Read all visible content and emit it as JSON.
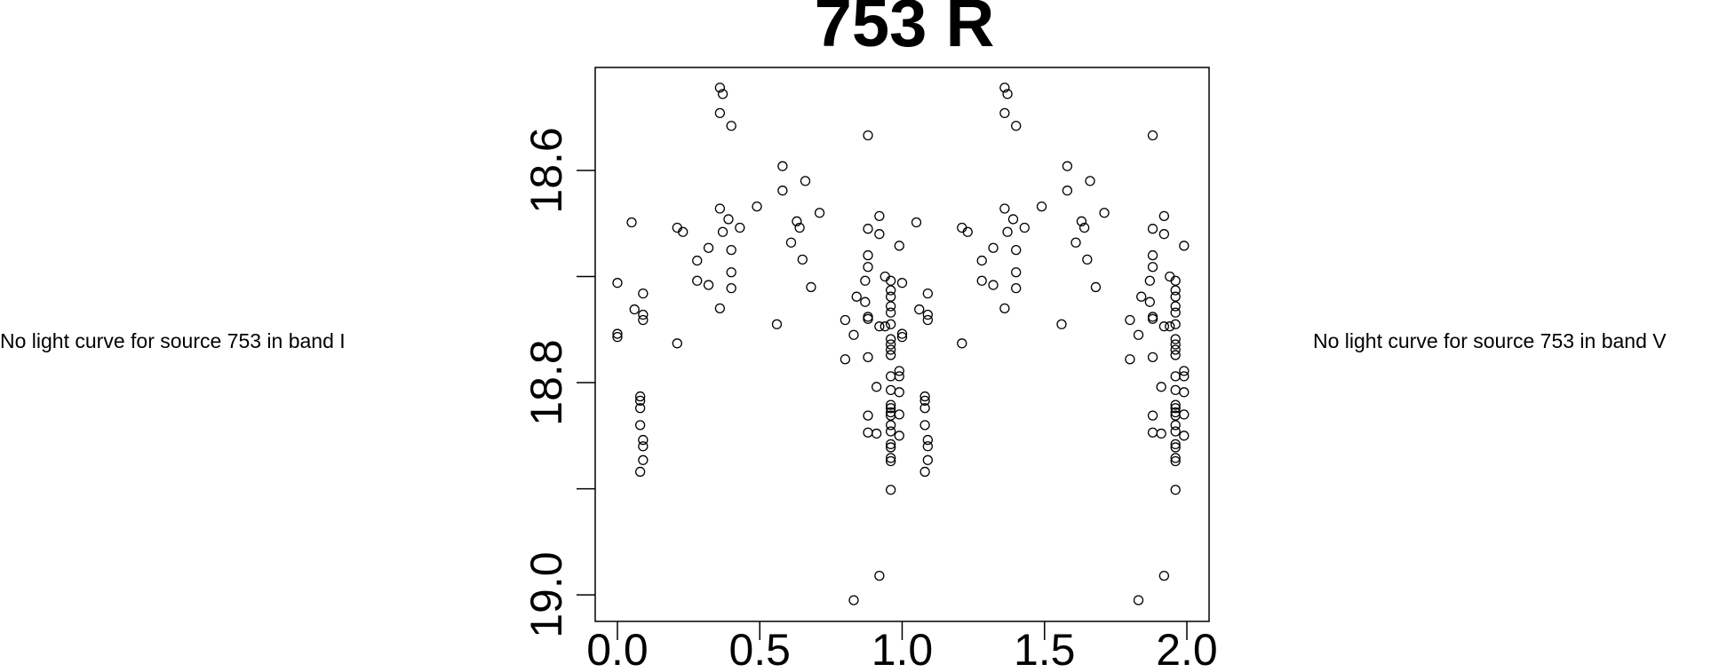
{
  "chart_data": {
    "type": "scatter",
    "title": "753 R",
    "marker": "open-circle",
    "color": "#000000",
    "y_inverted": true,
    "annotations": [
      "No light curve for source 753 in band I",
      "No light curve for source 753 in band V"
    ],
    "xlim": [
      -0.078,
      2.078
    ],
    "ylim": [
      18.503,
      19.025
    ],
    "xticks": [
      {
        "value": 0,
        "label": "0.0"
      },
      0.5,
      {
        "value": 1,
        "label": "1.0"
      },
      1.5,
      {
        "value": 2,
        "label": "2.0"
      }
    ],
    "yticks": [
      18.6,
      18.8,
      {
        "value": 19,
        "label": "19.0"
      }
    ],
    "yminorticks": [
      18.7,
      18.9
    ],
    "x": [
      0,
      0,
      0,
      0.05,
      0.06,
      0.09,
      0.09,
      0.09,
      0.08,
      0.08,
      0.08,
      0.08,
      0.09,
      0.09,
      0.09,
      0.08,
      0.21,
      0.21,
      0.23,
      0.28,
      0.28,
      0.32,
      0.32,
      0.36,
      0.37,
      0.36,
      0.4,
      0.36,
      0.37,
      0.39,
      0.36,
      0.4,
      0.4,
      0.4,
      0.43,
      0.49,
      0.56,
      0.58,
      0.58,
      0.61,
      0.63,
      0.64,
      0.65,
      0.66,
      0.68,
      0.71,
      0.8,
      0.8,
      0.83,
      0.84,
      0.87,
      0.83,
      0.88,
      0.88,
      0.88,
      0.88,
      0.87,
      0.88,
      0.88,
      0.88,
      0.88,
      0.88,
      0.92,
      0.92,
      0.91,
      0.92,
      0.91,
      0.92,
      0.96,
      0.96,
      0.96,
      0.96,
      0.96,
      0.96,
      0.96,
      0.96,
      0.96,
      0.96,
      0.96,
      0.96,
      0.96,
      0.96,
      0.96,
      0.96,
      0.96,
      0.96,
      0.96,
      0.96,
      0.96,
      0.96,
      0.96,
      0.94,
      0.94,
      0.99,
      0.99,
      0.99,
      0.99,
      0.99,
      0.99,
      1,
      1,
      1,
      1.05,
      1.06,
      1.09,
      1.09,
      1.09,
      1.08,
      1.08,
      1.08,
      1.08,
      1.09,
      1.09,
      1.09,
      1.08,
      1.21,
      1.21,
      1.23,
      1.28,
      1.28,
      1.32,
      1.32,
      1.36,
      1.37,
      1.36,
      1.4,
      1.36,
      1.37,
      1.39,
      1.36,
      1.4,
      1.4,
      1.4,
      1.43,
      1.49,
      1.56,
      1.58,
      1.58,
      1.61,
      1.63,
      1.64,
      1.65,
      1.66,
      1.68,
      1.71,
      1.8,
      1.8,
      1.83,
      1.84,
      1.87,
      1.83,
      1.88,
      1.88,
      1.88,
      1.88,
      1.87,
      1.88,
      1.88,
      1.88,
      1.88,
      1.88,
      1.92,
      1.92,
      1.91,
      1.92,
      1.91,
      1.92,
      1.96,
      1.96,
      1.96,
      1.96,
      1.96,
      1.96,
      1.96,
      1.96,
      1.96,
      1.96,
      1.96,
      1.96,
      1.96,
      1.96,
      1.96,
      1.96,
      1.96,
      1.96,
      1.96,
      1.96,
      1.96,
      1.96,
      1.96,
      1.94,
      1.94,
      1.99,
      1.99,
      1.99,
      1.99,
      1.99,
      1.99
    ],
    "values": [
      18.706,
      18.754,
      18.757,
      18.649,
      18.731,
      18.716,
      18.736,
      18.741,
      18.813,
      18.817,
      18.824,
      18.84,
      18.854,
      18.86,
      18.873,
      18.884,
      18.763,
      18.654,
      18.658,
      18.685,
      18.704,
      18.673,
      18.708,
      18.522,
      18.528,
      18.546,
      18.558,
      18.636,
      18.658,
      18.646,
      18.73,
      18.675,
      18.696,
      18.711,
      18.654,
      18.634,
      18.745,
      18.596,
      18.619,
      18.668,
      18.648,
      18.654,
      18.684,
      18.61,
      18.71,
      18.64,
      18.741,
      18.778,
      18.755,
      18.719,
      18.724,
      19.005,
      18.567,
      18.655,
      18.68,
      18.691,
      18.704,
      18.738,
      18.74,
      18.776,
      18.831,
      18.847,
      18.643,
      18.66,
      18.804,
      18.747,
      18.848,
      18.982,
      18.704,
      18.713,
      18.719,
      18.728,
      18.734,
      18.745,
      18.759,
      18.764,
      18.769,
      18.774,
      18.794,
      18.807,
      18.821,
      18.824,
      18.828,
      18.831,
      18.84,
      18.846,
      18.858,
      18.861,
      18.871,
      18.874,
      18.901,
      18.747,
      18.7,
      18.671,
      18.789,
      18.794,
      18.809,
      18.83,
      18.85,
      18.706,
      18.754,
      18.757,
      18.649,
      18.731,
      18.716,
      18.736,
      18.741,
      18.813,
      18.817,
      18.824,
      18.84,
      18.854,
      18.86,
      18.873,
      18.884,
      18.763,
      18.654,
      18.658,
      18.685,
      18.704,
      18.673,
      18.708,
      18.522,
      18.528,
      18.546,
      18.558,
      18.636,
      18.658,
      18.646,
      18.73,
      18.675,
      18.696,
      18.711,
      18.654,
      18.634,
      18.745,
      18.596,
      18.619,
      18.668,
      18.648,
      18.654,
      18.684,
      18.61,
      18.71,
      18.64,
      18.741,
      18.778,
      18.755,
      18.719,
      18.724,
      19.005,
      18.567,
      18.655,
      18.68,
      18.691,
      18.704,
      18.738,
      18.74,
      18.776,
      18.831,
      18.847,
      18.643,
      18.66,
      18.804,
      18.747,
      18.848,
      18.982,
      18.704,
      18.713,
      18.719,
      18.728,
      18.734,
      18.745,
      18.759,
      18.764,
      18.769,
      18.774,
      18.794,
      18.807,
      18.821,
      18.824,
      18.828,
      18.831,
      18.84,
      18.846,
      18.858,
      18.861,
      18.871,
      18.874,
      18.901,
      18.747,
      18.7,
      18.671,
      18.789,
      18.794,
      18.809,
      18.83,
      18.85
    ]
  }
}
